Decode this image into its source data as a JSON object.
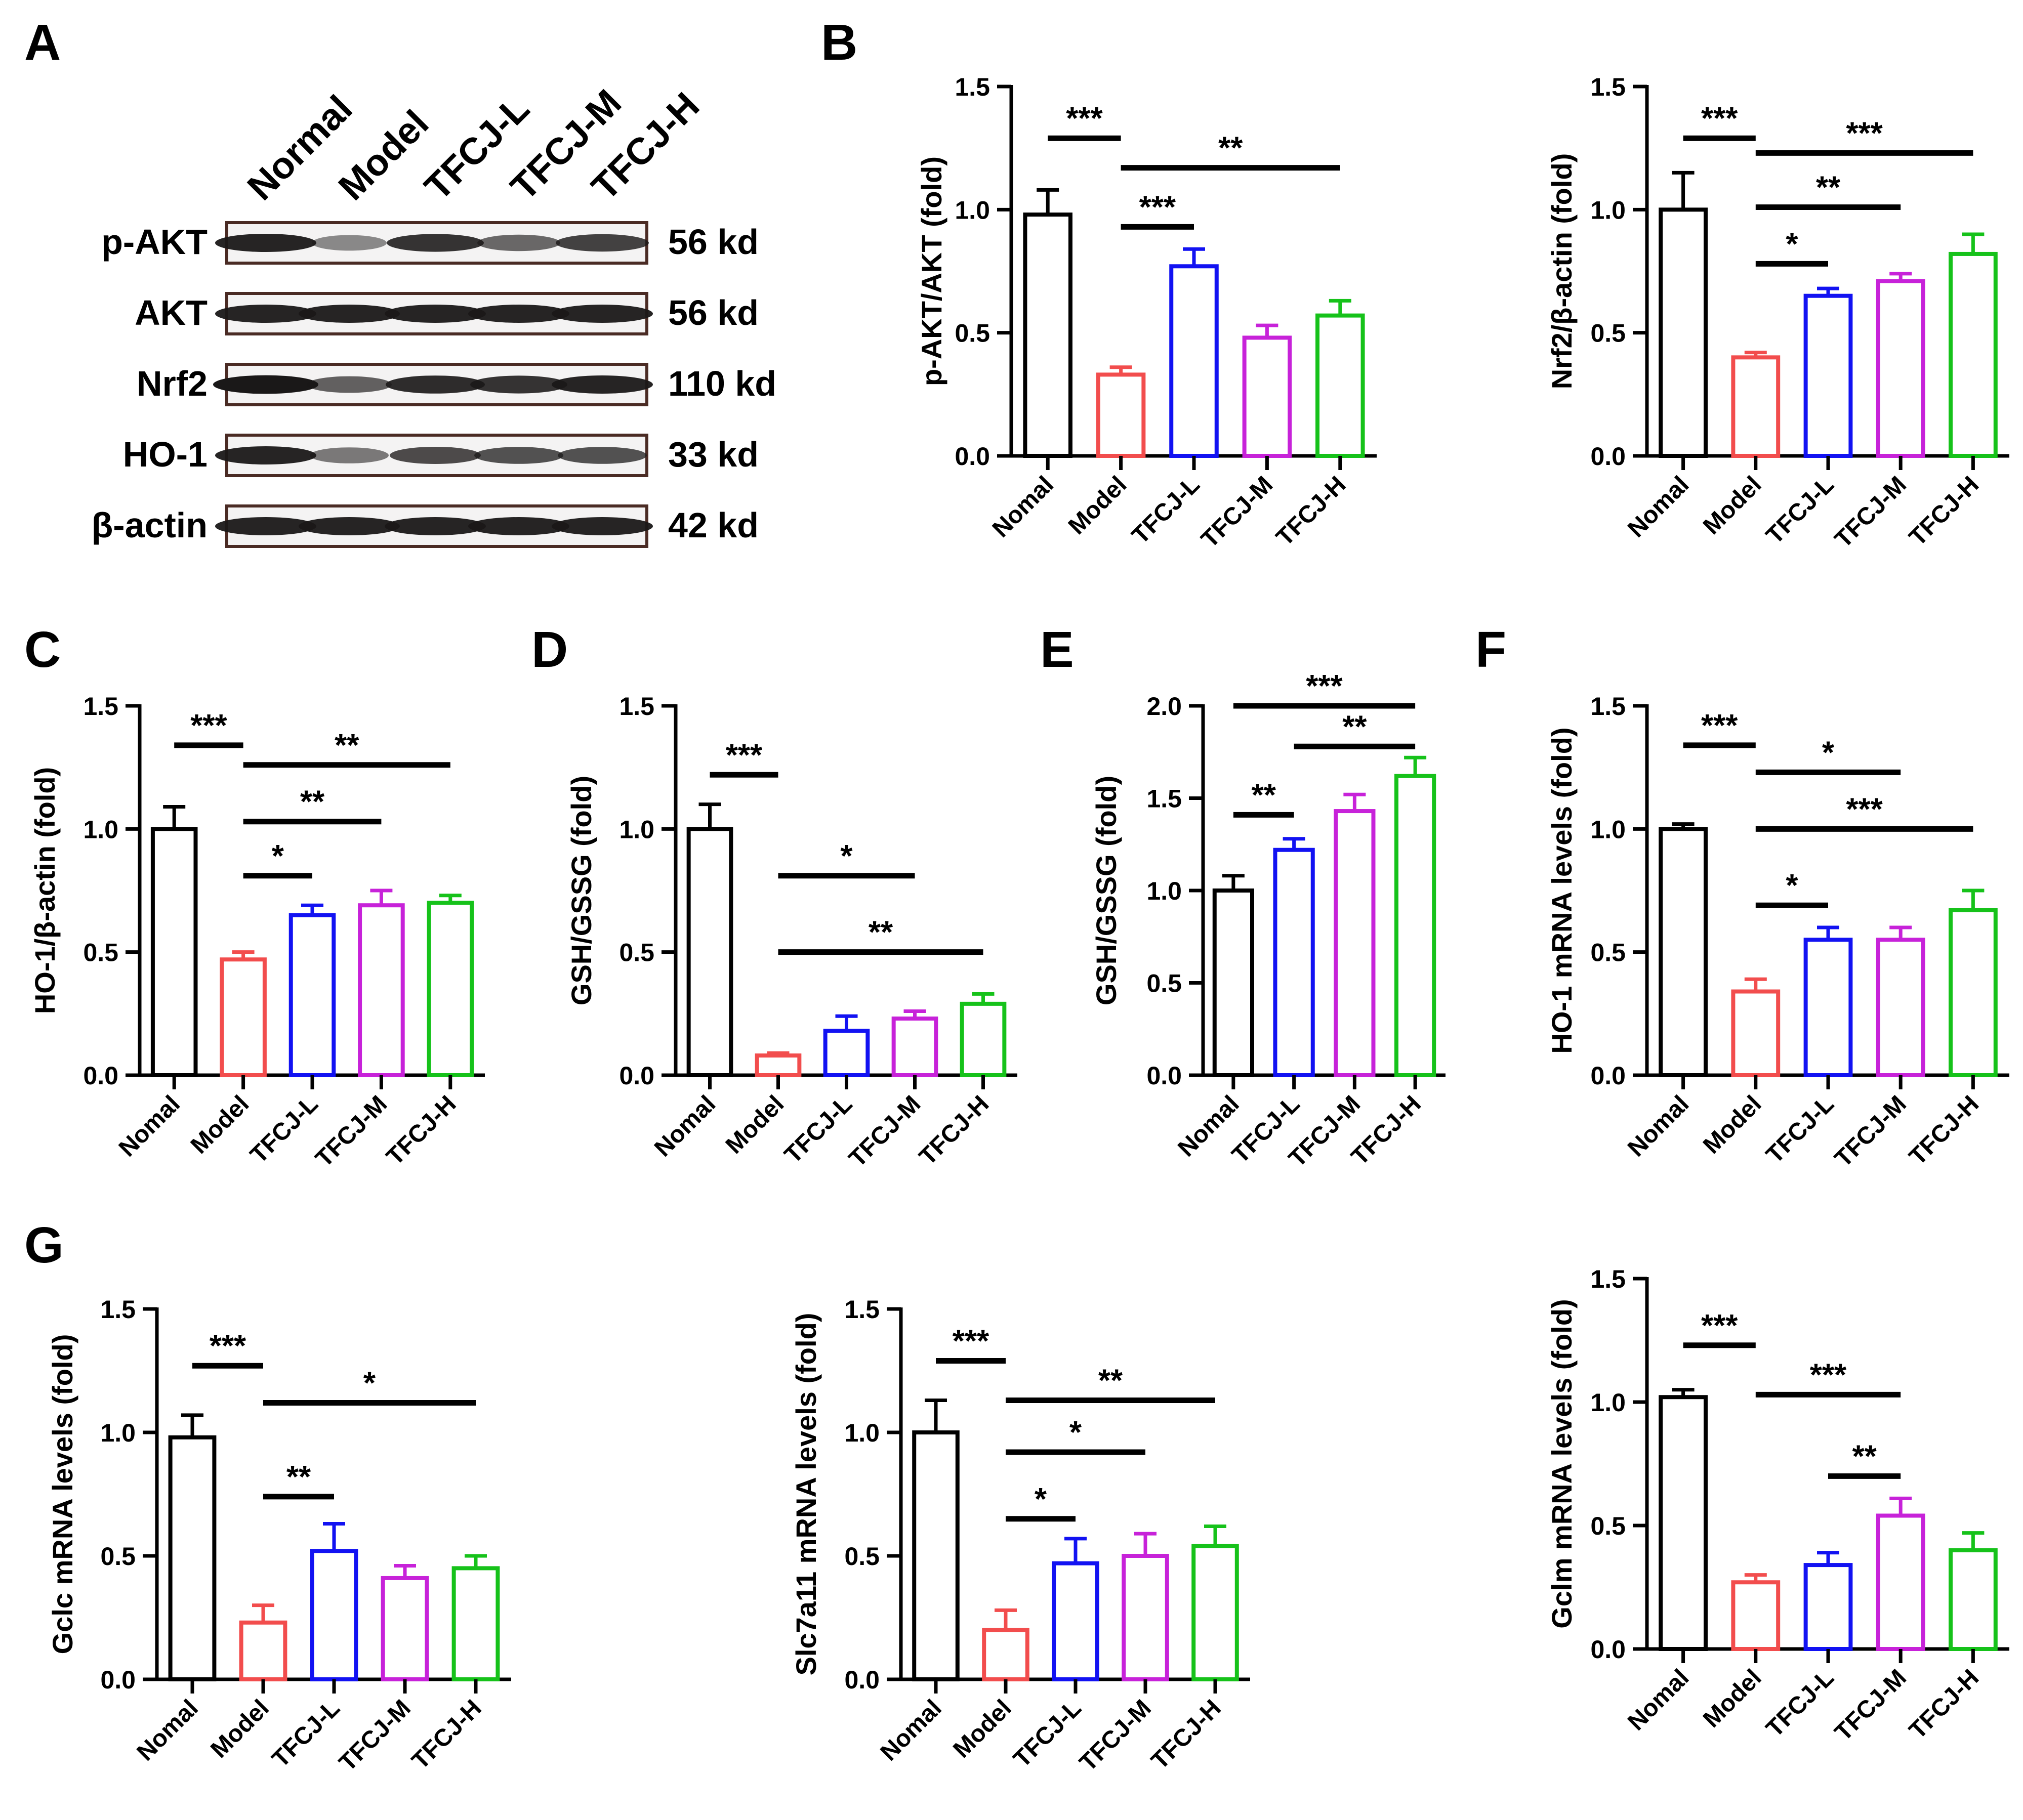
{
  "panels": {
    "A": {
      "letter": "A",
      "columns": [
        "Normal",
        "Model",
        "TFCJ-L",
        "TFCJ-M",
        "TFCJ-H"
      ],
      "rows": [
        {
          "protein": "p-AKT",
          "size": "56 kd",
          "intensity": [
            1.0,
            0.35,
            0.9,
            0.55,
            0.8
          ]
        },
        {
          "protein": "AKT",
          "size": "56 kd",
          "intensity": [
            1.0,
            1.0,
            1.0,
            1.0,
            1.0
          ]
        },
        {
          "protein": "Nrf2",
          "size": "110 kd",
          "intensity": [
            1.1,
            0.6,
            0.95,
            0.9,
            1.0
          ]
        },
        {
          "protein": "HO-1",
          "size": "33 kd",
          "intensity": [
            1.0,
            0.45,
            0.75,
            0.7,
            0.7
          ]
        },
        {
          "protein": "β-actin",
          "size": "42 kd",
          "intensity": [
            1.0,
            1.0,
            1.0,
            1.0,
            1.0
          ]
        }
      ]
    },
    "B": {
      "letter": "B"
    },
    "C": {
      "letter": "C"
    },
    "D": {
      "letter": "D"
    },
    "E": {
      "letter": "E"
    },
    "F": {
      "letter": "F"
    },
    "G": {
      "letter": "G"
    }
  },
  "colors": {
    "Nomal": "#000000",
    "Model": "#f24d4d",
    "TFCJ-L": "#1212f2",
    "TFCJ-M": "#c722d9",
    "TFCJ-H": "#16c21a"
  },
  "chart_data": [
    {
      "id": "B1",
      "type": "bar",
      "ylabel": "p-AKT/AKT (fold)",
      "ylim": [
        0,
        1.5
      ],
      "yticks": [
        "0.0",
        "0.5",
        "1.0",
        "1.5"
      ],
      "categories": [
        "Nomal",
        "Model",
        "TFCJ-L",
        "TFCJ-M",
        "TFCJ-H"
      ],
      "values": [
        0.98,
        0.33,
        0.77,
        0.48,
        0.57
      ],
      "errors": [
        0.1,
        0.03,
        0.07,
        0.05,
        0.06
      ],
      "sig": [
        {
          "from": 0,
          "to": 1,
          "y": 1.29,
          "label": "***"
        },
        {
          "from": 1,
          "to": 4,
          "y": 1.17,
          "label": "**"
        },
        {
          "from": 1,
          "to": 2,
          "y": 0.93,
          "label": "***"
        }
      ]
    },
    {
      "id": "B2",
      "type": "bar",
      "ylabel": "Nrf2/β-actin (fold)",
      "ylim": [
        0,
        1.5
      ],
      "yticks": [
        "0.0",
        "0.5",
        "1.0",
        "1.5"
      ],
      "categories": [
        "Nomal",
        "Model",
        "TFCJ-L",
        "TFCJ-M",
        "TFCJ-H"
      ],
      "values": [
        1.0,
        0.4,
        0.65,
        0.71,
        0.82
      ],
      "errors": [
        0.15,
        0.02,
        0.03,
        0.03,
        0.08
      ],
      "sig": [
        {
          "from": 0,
          "to": 1,
          "y": 1.29,
          "label": "***"
        },
        {
          "from": 1,
          "to": 4,
          "y": 1.23,
          "label": "***"
        },
        {
          "from": 1,
          "to": 3,
          "y": 1.01,
          "label": "**"
        },
        {
          "from": 1,
          "to": 2,
          "y": 0.78,
          "label": "*"
        }
      ]
    },
    {
      "id": "C",
      "type": "bar",
      "ylabel": "HO-1/β-actin (fold)",
      "ylim": [
        0,
        1.5
      ],
      "yticks": [
        "0.0",
        "0.5",
        "1.0",
        "1.5"
      ],
      "categories": [
        "Nomal",
        "Model",
        "TFCJ-L",
        "TFCJ-M",
        "TFCJ-H"
      ],
      "values": [
        1.0,
        0.47,
        0.65,
        0.69,
        0.7
      ],
      "errors": [
        0.09,
        0.03,
        0.04,
        0.06,
        0.03
      ],
      "sig": [
        {
          "from": 0,
          "to": 1,
          "y": 1.34,
          "label": "***"
        },
        {
          "from": 1,
          "to": 4,
          "y": 1.26,
          "label": "**"
        },
        {
          "from": 1,
          "to": 3,
          "y": 1.03,
          "label": "**"
        },
        {
          "from": 1,
          "to": 2,
          "y": 0.81,
          "label": "*"
        }
      ]
    },
    {
      "id": "D",
      "type": "bar",
      "ylabel": "GSH/GSSG (fold)",
      "ylim": [
        0,
        1.5
      ],
      "yticks": [
        "0.0",
        "0.5",
        "1.0",
        "1.5"
      ],
      "categories": [
        "Nomal",
        "Model",
        "TFCJ-L",
        "TFCJ-M",
        "TFCJ-H"
      ],
      "values": [
        1.0,
        0.08,
        0.18,
        0.23,
        0.29
      ],
      "errors": [
        0.1,
        0.01,
        0.06,
        0.03,
        0.04
      ],
      "sig": [
        {
          "from": 0,
          "to": 1,
          "y": 1.22,
          "label": "***"
        },
        {
          "from": 1,
          "to": 3,
          "y": 0.81,
          "label": "*"
        },
        {
          "from": 1,
          "to": 4,
          "y": 0.5,
          "label": "**"
        }
      ]
    },
    {
      "id": "E",
      "type": "bar",
      "ylabel": "GSH/GSSG (fold)",
      "ylim": [
        0,
        2.0
      ],
      "yticks": [
        "0.0",
        "0.5",
        "1.0",
        "1.5",
        "2.0"
      ],
      "categories": [
        "Nomal",
        "TFCJ-L",
        "TFCJ-M",
        "TFCJ-H"
      ],
      "values": [
        1.0,
        1.22,
        1.43,
        1.62
      ],
      "errors": [
        0.08,
        0.06,
        0.09,
        0.1
      ],
      "sig": [
        {
          "from": 0,
          "to": 3,
          "y": 2.0,
          "label": "***"
        },
        {
          "from": 1,
          "to": 3,
          "y": 1.78,
          "label": "**"
        },
        {
          "from": 0,
          "to": 1,
          "y": 1.41,
          "label": "**"
        }
      ]
    },
    {
      "id": "F",
      "type": "bar",
      "ylabel": "HO-1 mRNA levels (fold)",
      "ylim": [
        0,
        1.5
      ],
      "yticks": [
        "0.0",
        "0.5",
        "1.0",
        "1.5"
      ],
      "categories": [
        "Nomal",
        "Model",
        "TFCJ-L",
        "TFCJ-M",
        "TFCJ-H"
      ],
      "values": [
        1.0,
        0.34,
        0.55,
        0.55,
        0.67
      ],
      "errors": [
        0.02,
        0.05,
        0.05,
        0.05,
        0.08
      ],
      "sig": [
        {
          "from": 0,
          "to": 1,
          "y": 1.34,
          "label": "***"
        },
        {
          "from": 1,
          "to": 3,
          "y": 1.23,
          "label": "*"
        },
        {
          "from": 1,
          "to": 4,
          "y": 1.0,
          "label": "***"
        },
        {
          "from": 1,
          "to": 2,
          "y": 0.69,
          "label": "*"
        }
      ]
    },
    {
      "id": "G1",
      "type": "bar",
      "ylabel": "Gclc mRNA levels (fold)",
      "ylim": [
        0,
        1.5
      ],
      "yticks": [
        "0.0",
        "0.5",
        "1.0",
        "1.5"
      ],
      "categories": [
        "Nomal",
        "Model",
        "TFCJ-L",
        "TFCJ-M",
        "TFCJ-H"
      ],
      "values": [
        0.98,
        0.23,
        0.52,
        0.41,
        0.45
      ],
      "errors": [
        0.09,
        0.07,
        0.11,
        0.05,
        0.05
      ],
      "sig": [
        {
          "from": 0,
          "to": 1,
          "y": 1.27,
          "label": "***"
        },
        {
          "from": 1,
          "to": 4,
          "y": 1.12,
          "label": "*"
        },
        {
          "from": 1,
          "to": 2,
          "y": 0.74,
          "label": "**"
        }
      ]
    },
    {
      "id": "G2",
      "type": "bar",
      "ylabel": "Slc7a11 mRNA levels (fold)",
      "ylim": [
        0,
        1.5
      ],
      "yticks": [
        "0.0",
        "0.5",
        "1.0",
        "1.5"
      ],
      "categories": [
        "Nomal",
        "Model",
        "TFCJ-L",
        "TFCJ-M",
        "TFCJ-H"
      ],
      "values": [
        1.0,
        0.2,
        0.47,
        0.5,
        0.54
      ],
      "errors": [
        0.13,
        0.08,
        0.1,
        0.09,
        0.08
      ],
      "sig": [
        {
          "from": 0,
          "to": 1,
          "y": 1.29,
          "label": "***"
        },
        {
          "from": 1,
          "to": 4,
          "y": 1.13,
          "label": "**"
        },
        {
          "from": 1,
          "to": 3,
          "y": 0.92,
          "label": "*"
        },
        {
          "from": 1,
          "to": 2,
          "y": 0.65,
          "label": "*"
        }
      ]
    },
    {
      "id": "G3",
      "type": "bar",
      "ylabel": "Gclm mRNA levels (fold)",
      "ylim": [
        0,
        1.5
      ],
      "yticks": [
        "0.0",
        "0.5",
        "1.0",
        "1.5"
      ],
      "categories": [
        "Nomal",
        "Model",
        "TFCJ-L",
        "TFCJ-M",
        "TFCJ-H"
      ],
      "values": [
        1.02,
        0.27,
        0.34,
        0.54,
        0.4
      ],
      "errors": [
        0.03,
        0.03,
        0.05,
        0.07,
        0.07
      ],
      "sig": [
        {
          "from": 0,
          "to": 1,
          "y": 1.23,
          "label": "***"
        },
        {
          "from": 1,
          "to": 3,
          "y": 1.03,
          "label": "***"
        },
        {
          "from": 2,
          "to": 3,
          "y": 0.7,
          "label": "**"
        }
      ]
    }
  ]
}
